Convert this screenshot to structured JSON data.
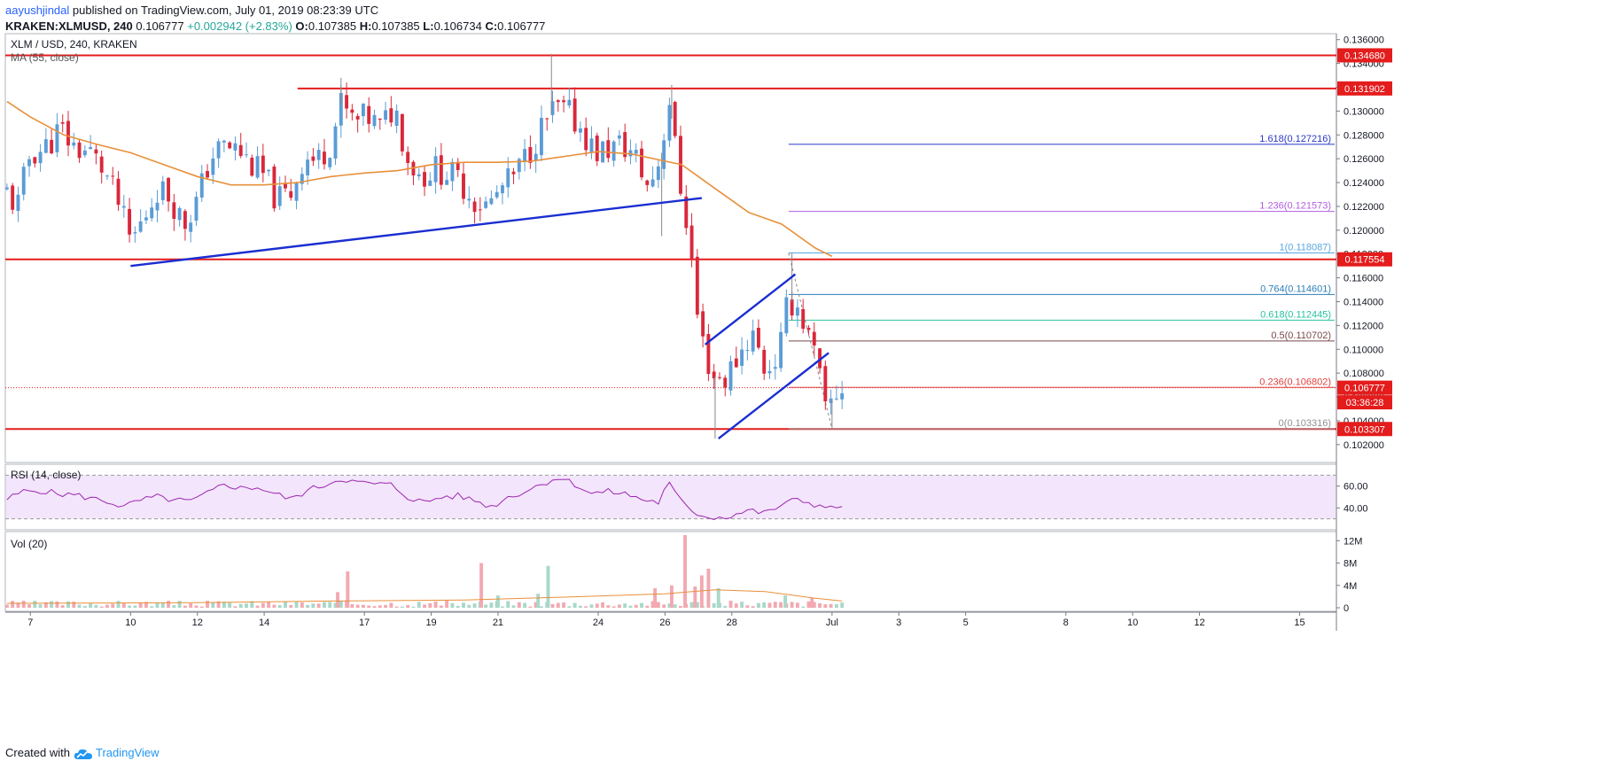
{
  "header": {
    "username": "aayushjindal",
    "published_text": " published on TradingView.com, July 01, 2019 08:23:39 UTC",
    "symbol": "KRAKEN:XLMUSD, 240",
    "price": "0.106777",
    "change": "+0.002942 (+2.83%)",
    "o_label": "O:",
    "o_value": "0.107385",
    "h_label": "H:",
    "h_value": "0.107385",
    "l_label": "L:",
    "l_value": "0.106734",
    "c_label": "C:",
    "c_value": "0.106777"
  },
  "footer": {
    "created_with": "Created with",
    "brand": "TradingView"
  },
  "colors": {
    "up": "#5b9cd6",
    "down": "#d9283b",
    "ma": "#e8903a",
    "rsi_line": "#9c27b0",
    "rsi_band": "#f3e5fb",
    "support_resistance": "#e41c1c",
    "trendline": "#1a2ed1",
    "fib_1618": "#2a38c7",
    "fib_1236": "#b05ee0",
    "fib_1": "#56a7e0",
    "fib_0764": "#2e7eb8",
    "fib_0618": "#29c2a0",
    "fib_05": "#7a4a4a",
    "fib_0236": "#e04040",
    "fib_0": "#909090"
  },
  "chart_data": [
    {
      "type": "candlestick",
      "title": "XLM / USD, 240, KRAKEN",
      "indicator": "MA (55, close)",
      "ylim": [
        0.1005,
        0.1365
      ],
      "y_ticks": [
        "0.136000",
        "0.134000",
        "0.132000",
        "0.130000",
        "0.128000",
        "0.126000",
        "0.124000",
        "0.122000",
        "0.120000",
        "0.118000",
        "0.116000",
        "0.114000",
        "0.112000",
        "0.110000",
        "0.108000",
        "0.106000",
        "0.104000",
        "0.102000"
      ],
      "y_tick_values": [
        0.136,
        0.134,
        0.132,
        0.13,
        0.128,
        0.126,
        0.124,
        0.122,
        0.12,
        0.118,
        0.116,
        0.114,
        0.112,
        0.11,
        0.108,
        0.106,
        0.104,
        0.102
      ],
      "x_labels": [
        "7",
        "10",
        "12",
        "14",
        "17",
        "19",
        "21",
        "24",
        "26",
        "28",
        "Jul",
        "3",
        "5",
        "8",
        "10",
        "12",
        "15"
      ],
      "x_label_days": [
        7,
        10,
        12,
        14,
        17,
        19,
        21,
        24,
        26,
        28,
        31,
        33,
        35,
        38,
        40,
        42,
        45
      ],
      "day_range": [
        6.25,
        46.1
      ],
      "price_labels": [
        {
          "text": "0.134680",
          "value": 0.13468
        },
        {
          "text": "0.131902",
          "value": 0.131902
        },
        {
          "text": "0.117554",
          "value": 0.117554
        },
        {
          "text": "0.106777",
          "value": 0.106777
        },
        {
          "text": "03:36:28",
          "value": 0.10555
        },
        {
          "text": "0.103307",
          "value": 0.103307
        }
      ],
      "horizontal_levels": [
        0.13468,
        0.131902,
        0.117554,
        0.103307
      ],
      "current_price": 0.106777,
      "trendlines": [
        {
          "x1": 10.0,
          "y1": 0.117,
          "x2": 27.1,
          "y2": 0.1227
        },
        {
          "x1": 27.2,
          "y1": 0.1104,
          "x2": 29.9,
          "y2": 0.1163
        },
        {
          "x1": 27.6,
          "y1": 0.1025,
          "x2": 30.9,
          "y2": 0.1097
        }
      ],
      "fibonacci": {
        "start_day": 29.7,
        "levels": [
          {
            "label": "1.618(0.127216)",
            "value": 0.127216,
            "color_key": "fib_1618"
          },
          {
            "label": "1.236(0.121573)",
            "value": 0.121573,
            "color_key": "fib_1236"
          },
          {
            "label": "1(0.118087)",
            "value": 0.118087,
            "color_key": "fib_1"
          },
          {
            "label": "0.764(0.114601)",
            "value": 0.114601,
            "color_key": "fib_0764"
          },
          {
            "label": "0.618(0.112445)",
            "value": 0.112445,
            "color_key": "fib_0618"
          },
          {
            "label": "0.5(0.110702)",
            "value": 0.110702,
            "color_key": "fib_05"
          },
          {
            "label": "0.236(0.106802)",
            "value": 0.106802,
            "color_key": "fib_0236"
          },
          {
            "label": "0(0.103316)",
            "value": 0.103316,
            "color_key": "fib_0"
          }
        ]
      },
      "close_path": [
        [
          6.3,
          0.1232
        ],
        [
          6.6,
          0.1218
        ],
        [
          7.0,
          0.1265
        ],
        [
          7.4,
          0.1268
        ],
        [
          7.9,
          0.1285
        ],
        [
          8.3,
          0.127
        ],
        [
          8.8,
          0.1265
        ],
        [
          9.2,
          0.125
        ],
        [
          9.6,
          0.1225
        ],
        [
          10.0,
          0.119
        ],
        [
          10.4,
          0.121
        ],
        [
          10.8,
          0.1235
        ],
        [
          11.2,
          0.1228
        ],
        [
          11.6,
          0.1205
        ],
        [
          12.0,
          0.1225
        ],
        [
          12.4,
          0.1262
        ],
        [
          12.8,
          0.127
        ],
        [
          13.2,
          0.1268
        ],
        [
          13.6,
          0.1255
        ],
        [
          14.0,
          0.1245
        ],
        [
          14.4,
          0.1225
        ],
        [
          14.8,
          0.1232
        ],
        [
          15.2,
          0.1262
        ],
        [
          15.6,
          0.1258
        ],
        [
          16.0,
          0.1275
        ],
        [
          16.3,
          0.1305
        ],
        [
          16.7,
          0.129
        ],
        [
          17.1,
          0.1295
        ],
        [
          17.5,
          0.1285
        ],
        [
          17.9,
          0.1305
        ],
        [
          18.3,
          0.126
        ],
        [
          18.7,
          0.1245
        ],
        [
          19.1,
          0.1252
        ],
        [
          19.5,
          0.1248
        ],
        [
          19.9,
          0.124
        ],
        [
          20.3,
          0.1225
        ],
        [
          20.7,
          0.122
        ],
        [
          21.1,
          0.1235
        ],
        [
          21.5,
          0.1245
        ],
        [
          21.9,
          0.1265
        ],
        [
          22.3,
          0.1285
        ],
        [
          22.7,
          0.1302
        ],
        [
          23.1,
          0.1298
        ],
        [
          23.5,
          0.1285
        ],
        [
          23.9,
          0.1265
        ],
        [
          24.3,
          0.1268
        ],
        [
          24.7,
          0.1272
        ],
        [
          25.1,
          0.1262
        ],
        [
          25.5,
          0.1235
        ],
        [
          25.9,
          0.1265
        ],
        [
          26.1,
          0.1318
        ],
        [
          26.4,
          0.1245
        ],
        [
          26.7,
          0.12
        ],
        [
          27.0,
          0.112
        ],
        [
          27.4,
          0.1078
        ],
        [
          27.8,
          0.1075
        ],
        [
          28.2,
          0.1095
        ],
        [
          28.6,
          0.1115
        ],
        [
          29.0,
          0.1082
        ],
        [
          29.4,
          0.1095
        ],
        [
          29.7,
          0.1142
        ],
        [
          30.0,
          0.1135
        ],
        [
          30.3,
          0.111
        ],
        [
          30.6,
          0.1082
        ],
        [
          30.8,
          0.1045
        ],
        [
          31.0,
          0.1058
        ],
        [
          31.3,
          0.1068
        ]
      ],
      "ma_path": [
        [
          6.3,
          0.1308
        ],
        [
          7.0,
          0.1295
        ],
        [
          8.0,
          0.128
        ],
        [
          9.0,
          0.1272
        ],
        [
          10.0,
          0.1265
        ],
        [
          11.0,
          0.1255
        ],
        [
          12.0,
          0.1245
        ],
        [
          13.0,
          0.1238
        ],
        [
          14.0,
          0.1238
        ],
        [
          15.0,
          0.124
        ],
        [
          16.0,
          0.1245
        ],
        [
          17.0,
          0.1248
        ],
        [
          18.0,
          0.125
        ],
        [
          19.0,
          0.1255
        ],
        [
          20.0,
          0.1257
        ],
        [
          21.0,
          0.1257
        ],
        [
          22.0,
          0.1258
        ],
        [
          23.0,
          0.1262
        ],
        [
          24.0,
          0.1266
        ],
        [
          25.0,
          0.1264
        ],
        [
          26.0,
          0.1258
        ],
        [
          26.5,
          0.1255
        ],
        [
          27.0,
          0.1245
        ],
        [
          27.5,
          0.1235
        ],
        [
          28.0,
          0.1225
        ],
        [
          28.5,
          0.1215
        ],
        [
          29.0,
          0.121
        ],
        [
          29.5,
          0.1205
        ],
        [
          30.0,
          0.1195
        ],
        [
          30.5,
          0.1185
        ],
        [
          31.0,
          0.1178
        ]
      ]
    },
    {
      "type": "line",
      "title": "RSI (14, close)",
      "ylim": [
        20,
        80
      ],
      "y_ticks": [
        "60.00",
        "40.00"
      ],
      "y_tick_values": [
        60,
        40
      ],
      "band": [
        30,
        70
      ],
      "x": [
        6.3,
        6.8,
        7.3,
        7.8,
        8.3,
        8.8,
        9.3,
        9.8,
        10.3,
        10.8,
        11.3,
        11.8,
        12.3,
        12.8,
        13.3,
        13.8,
        14.3,
        14.8,
        15.3,
        15.8,
        16.3,
        16.8,
        17.3,
        17.8,
        18.3,
        18.8,
        19.3,
        19.8,
        20.3,
        20.8,
        21.3,
        21.8,
        22.3,
        22.8,
        23.3,
        23.8,
        24.3,
        24.8,
        25.3,
        25.8,
        26.1,
        26.5,
        27.0,
        27.5,
        28.0,
        28.5,
        29.0,
        29.5,
        30.0,
        30.5,
        31.0,
        31.3
      ],
      "values": [
        48,
        55,
        56,
        53,
        52,
        49,
        46,
        41,
        47,
        50,
        47,
        46,
        53,
        62,
        58,
        59,
        53,
        48,
        56,
        61,
        67,
        63,
        62,
        61,
        50,
        45,
        50,
        51,
        47,
        41,
        50,
        55,
        62,
        68,
        62,
        53,
        55,
        53,
        48,
        45,
        63,
        45,
        34,
        31,
        33,
        38,
        35,
        43,
        48,
        43,
        39,
        43
      ]
    },
    {
      "type": "bar",
      "title": "Vol (20)",
      "ylim": [
        0,
        13000000
      ],
      "y_ticks": [
        "12M",
        "8M",
        "4M",
        "0"
      ],
      "y_tick_values": [
        12000000,
        8000000,
        4000000,
        0
      ],
      "spikes": [
        {
          "day": 16.2,
          "value": 2800000,
          "color_key": "down"
        },
        {
          "day": 16.5,
          "value": 6500000,
          "color_key": "down"
        },
        {
          "day": 20.5,
          "value": 8000000,
          "color_key": "down"
        },
        {
          "day": 21.0,
          "value": 2200000,
          "color_key": "up"
        },
        {
          "day": 22.5,
          "value": 7500000,
          "color_key": "up"
        },
        {
          "day": 22.2,
          "value": 2500000,
          "color_key": "up"
        },
        {
          "day": 25.7,
          "value": 3500000,
          "color_key": "down"
        },
        {
          "day": 26.2,
          "value": 4000000,
          "color_key": "down"
        },
        {
          "day": 26.6,
          "value": 13000000,
          "color_key": "down"
        },
        {
          "day": 26.9,
          "value": 3800000,
          "color_key": "down"
        },
        {
          "day": 27.1,
          "value": 5800000,
          "color_key": "down"
        },
        {
          "day": 27.3,
          "value": 7000000,
          "color_key": "down"
        },
        {
          "day": 27.6,
          "value": 3500000,
          "color_key": "up"
        },
        {
          "day": 29.6,
          "value": 2200000,
          "color_key": "up"
        },
        {
          "day": 30.4,
          "value": 1800000,
          "color_key": "down"
        }
      ],
      "ma_values": [
        [
          6.3,
          800000
        ],
        [
          12.0,
          900000
        ],
        [
          16.0,
          1200000
        ],
        [
          20.0,
          1400000
        ],
        [
          23.0,
          1900000
        ],
        [
          26.0,
          2500000
        ],
        [
          27.5,
          3200000
        ],
        [
          29.0,
          2900000
        ],
        [
          30.5,
          1700000
        ],
        [
          31.3,
          1200000
        ]
      ]
    }
  ]
}
